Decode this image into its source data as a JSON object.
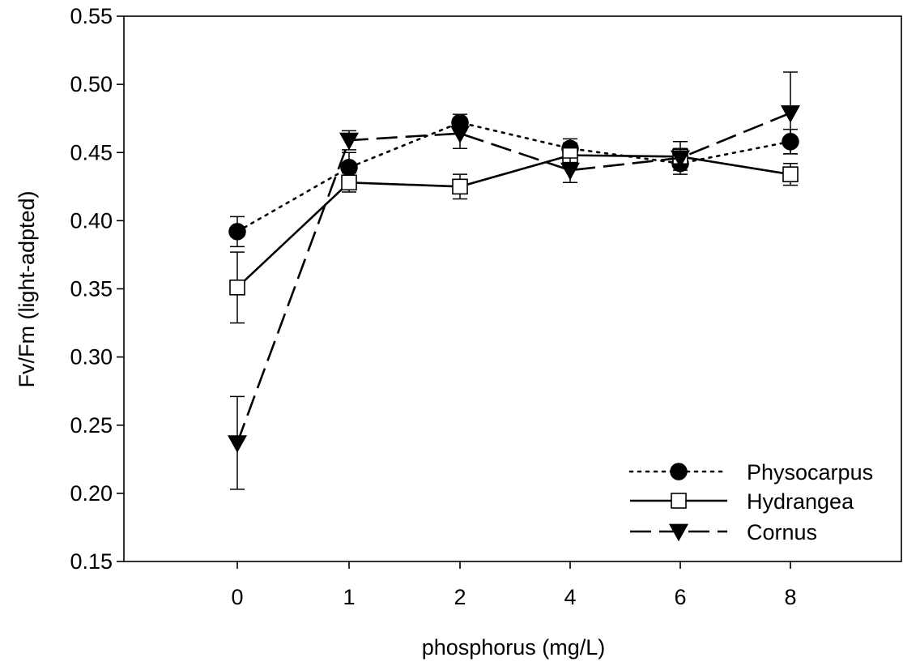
{
  "chart_data": {
    "type": "line",
    "title": "",
    "xlabel": "phosphorus (mg/L)",
    "ylabel": "Fv/Fm (light-adpted)",
    "categories": [
      "0",
      "1",
      "2",
      "4",
      "6",
      "8"
    ],
    "ylim": [
      0.15,
      0.55
    ],
    "yticks": [
      0.15,
      0.2,
      0.25,
      0.3,
      0.35,
      0.4,
      0.45,
      0.5,
      0.55
    ],
    "ytick_labels": [
      "0.15",
      "0.20",
      "0.25",
      "0.30",
      "0.35",
      "0.40",
      "0.45",
      "0.50",
      "0.55"
    ],
    "grid": false,
    "legend_position": "bottom-right",
    "series": [
      {
        "name": "Physocarpus",
        "line_style": "dotted",
        "marker": "filled-circle",
        "values": [
          0.392,
          0.439,
          0.472,
          0.453,
          0.442,
          0.458
        ],
        "errors": [
          0.011,
          0.011,
          0.006,
          0.007,
          0.005,
          0.009
        ]
      },
      {
        "name": "Hydrangea",
        "line_style": "solid",
        "marker": "open-square",
        "values": [
          0.351,
          0.428,
          0.425,
          0.448,
          0.447,
          0.434
        ],
        "errors": [
          0.026,
          0.007,
          0.009,
          0.009,
          0.006,
          0.008
        ]
      },
      {
        "name": "Cornus",
        "line_style": "dashed",
        "marker": "filled-triangle-down",
        "values": [
          0.237,
          0.459,
          0.464,
          0.437,
          0.446,
          0.479
        ],
        "errors": [
          0.034,
          0.007,
          0.011,
          0.009,
          0.012,
          0.03
        ]
      }
    ]
  }
}
